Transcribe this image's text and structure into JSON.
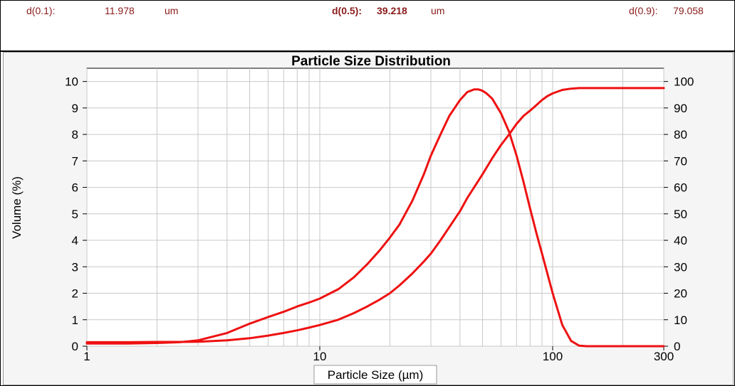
{
  "stats": {
    "d10_label": "d(0.1):",
    "d10_value": "11.978",
    "d10_unit": "um",
    "d50_label": "d(0.5):",
    "d50_value": "39.218",
    "d50_unit": "um",
    "d90_label": "d(0.9):",
    "d90_value": "79.058"
  },
  "chart_data": {
    "type": "line",
    "title": "Particle Size Distribution",
    "xlabel": "Particle Size (µm)",
    "ylabel": "Volume (%)",
    "x_scale": "log",
    "xlim": [
      1,
      300
    ],
    "ylim": [
      0,
      10.5
    ],
    "y2lim": [
      0,
      105
    ],
    "x_ticks": [
      1,
      10,
      100,
      300
    ],
    "y_ticks": [
      0,
      1,
      2,
      3,
      4,
      5,
      6,
      7,
      8,
      9,
      10
    ],
    "y2_ticks": [
      0,
      10,
      20,
      30,
      40,
      50,
      60,
      70,
      80,
      90,
      100
    ],
    "grid": true,
    "line_color": "#ee1111",
    "series": [
      {
        "axis": "left",
        "x": [
          1,
          1.5,
          2,
          2.5,
          3,
          4,
          5,
          6,
          7,
          8,
          9,
          10,
          12,
          14,
          16,
          18,
          20,
          22,
          25,
          28,
          30,
          33,
          36,
          40,
          43,
          46,
          48,
          50,
          52,
          55,
          60,
          65,
          70,
          75,
          80,
          85,
          90,
          100,
          110,
          120,
          130,
          140,
          150,
          200,
          300
        ],
        "y": [
          0.1,
          0.1,
          0.12,
          0.15,
          0.22,
          0.5,
          0.85,
          1.1,
          1.3,
          1.5,
          1.65,
          1.8,
          2.15,
          2.6,
          3.1,
          3.6,
          4.1,
          4.6,
          5.5,
          6.5,
          7.2,
          8.0,
          8.7,
          9.3,
          9.6,
          9.7,
          9.7,
          9.65,
          9.55,
          9.35,
          8.8,
          8.1,
          7.2,
          6.2,
          5.2,
          4.3,
          3.5,
          2.0,
          0.8,
          0.2,
          0.02,
          0,
          0,
          0,
          0
        ]
      },
      {
        "axis": "right",
        "x": [
          1,
          1.5,
          2,
          2.5,
          3,
          4,
          5,
          6,
          7,
          8,
          9,
          10,
          12,
          14,
          16,
          18,
          20,
          22,
          25,
          28,
          30,
          33,
          36,
          40,
          43,
          46,
          50,
          55,
          60,
          65,
          70,
          75,
          80,
          85,
          90,
          95,
          100,
          110,
          120,
          130,
          150,
          200,
          300
        ],
        "y": [
          1.5,
          1.5,
          1.6,
          1.6,
          1.7,
          2.2,
          3.0,
          4.0,
          5.0,
          6.0,
          7.0,
          8.0,
          10.0,
          12.5,
          15.0,
          17.5,
          20.0,
          23.0,
          27.5,
          32.0,
          35.0,
          40.0,
          45.0,
          51.0,
          56.0,
          60.0,
          65.0,
          71.0,
          76.0,
          80.0,
          84.0,
          87.0,
          89.0,
          91.0,
          93.0,
          94.5,
          95.5,
          96.8,
          97.3,
          97.5,
          97.5,
          97.5,
          97.5
        ]
      }
    ]
  }
}
